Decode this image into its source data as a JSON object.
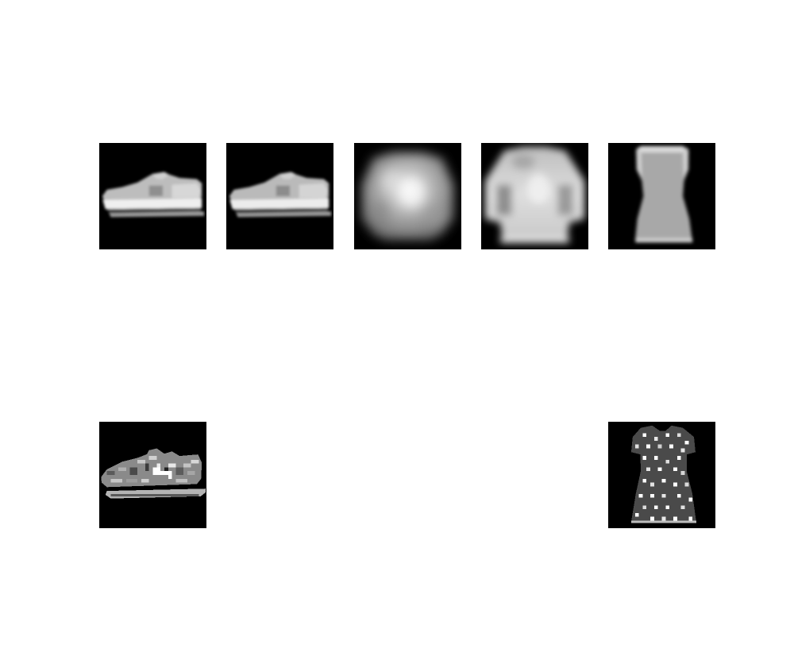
{
  "figure": {
    "background": "#ffffff",
    "panels": [
      {
        "id": "r1c1",
        "content": "sneaker",
        "style": "smooth-reconstruction"
      },
      {
        "id": "r1c2",
        "content": "sneaker",
        "style": "smooth-reconstruction"
      },
      {
        "id": "r1c3",
        "content": "shirt",
        "style": "blurry-reconstruction"
      },
      {
        "id": "r1c4",
        "content": "shirt",
        "style": "blurry-reconstruction"
      },
      {
        "id": "r1c5",
        "content": "dress",
        "style": "smooth-reconstruction"
      },
      {
        "id": "r2c1",
        "content": "sneaker",
        "style": "original-textured"
      },
      {
        "id": "r2c5",
        "content": "dress",
        "style": "original-dotted"
      }
    ]
  }
}
